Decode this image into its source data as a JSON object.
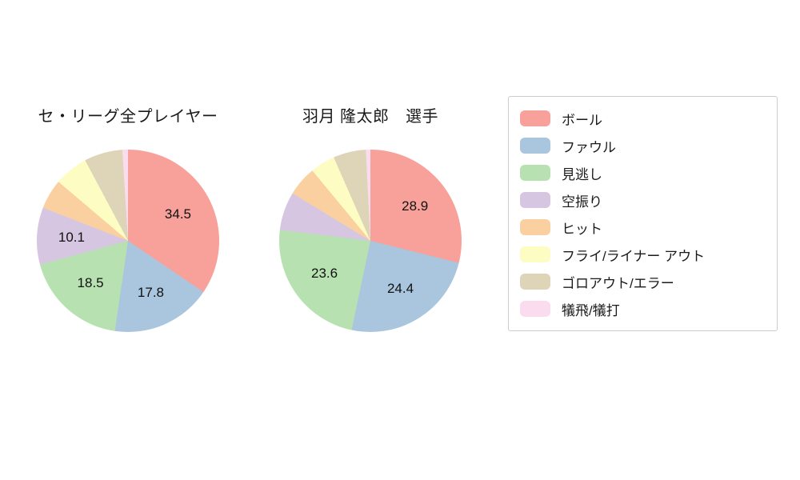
{
  "chart_data": [
    {
      "type": "pie",
      "title": "セ・リーグ全プレイヤー",
      "categories": [
        "ボール",
        "ファウル",
        "見逃し",
        "空振り",
        "ヒット",
        "フライ/ライナー アウト",
        "ゴロアウト/エラー",
        "犠飛/犠打"
      ],
      "values": [
        34.5,
        17.8,
        18.5,
        10.1,
        5.3,
        6.0,
        6.8,
        1.0
      ],
      "data_labels": [
        "34.5",
        "17.8",
        "18.5",
        "10.1",
        "",
        "",
        "",
        ""
      ],
      "start_angle": "top",
      "direction": "clockwise"
    },
    {
      "type": "pie",
      "title": "羽月 隆太郎　選手",
      "categories": [
        "ボール",
        "ファウル",
        "見逃し",
        "空振り",
        "ヒット",
        "フライ/ライナー アウト",
        "ゴロアウト/エラー",
        "犠飛/犠打"
      ],
      "values": [
        28.9,
        24.4,
        23.6,
        6.8,
        5.3,
        4.4,
        5.8,
        0.8
      ],
      "data_labels": [
        "28.9",
        "24.4",
        "23.6",
        "",
        "",
        "",
        "",
        ""
      ],
      "start_angle": "top",
      "direction": "clockwise"
    }
  ],
  "legend": {
    "position": "right",
    "entries": [
      {
        "label": "ボール",
        "color": "#f8a19b"
      },
      {
        "label": "ファウル",
        "color": "#a9c6de"
      },
      {
        "label": "見逃し",
        "color": "#b7e1b1"
      },
      {
        "label": "空振り",
        "color": "#d7c6e2"
      },
      {
        "label": "ヒット",
        "color": "#fad0a0"
      },
      {
        "label": "フライ/ライナー アウト",
        "color": "#fdfdc3"
      },
      {
        "label": "ゴロアウト/エラー",
        "color": "#ded5b8"
      },
      {
        "label": "犠飛/犠打",
        "color": "#fbdcef"
      }
    ]
  }
}
